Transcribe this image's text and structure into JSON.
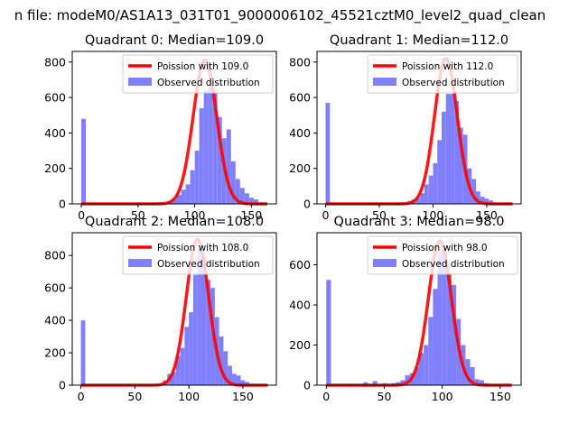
{
  "figure": {
    "suptitle": "n file: modeM0/AS1A13_031T01_9000006102_45521cztM0_level2_quad_clean"
  },
  "colors": {
    "histogram": "#8080ff",
    "fit": "#ff0000",
    "text": "#000000"
  },
  "chart_data": [
    {
      "type": "histogram",
      "title": "Quadrant 0: Median=109.0",
      "median": 109.0,
      "xlim": [
        -8,
        172
      ],
      "ylim": [
        0,
        860
      ],
      "xticks": [
        0,
        50,
        100,
        150
      ],
      "yticks": [
        0,
        200,
        400,
        600,
        800
      ],
      "legend": {
        "placement": "top-right",
        "entries": [
          "Poission with 109.0",
          "Observed distribution"
        ]
      },
      "fit_curve": {
        "name": "Poission with 109.0",
        "mean": 109.0,
        "peak": 810
      },
      "bins": [
        [
          0,
          480
        ],
        [
          4,
          3
        ],
        [
          24,
          3
        ],
        [
          40,
          3
        ],
        [
          60,
          3
        ],
        [
          72,
          5
        ],
        [
          76,
          15
        ],
        [
          80,
          25
        ],
        [
          84,
          50
        ],
        [
          88,
          80
        ],
        [
          92,
          110
        ],
        [
          96,
          190
        ],
        [
          100,
          300
        ],
        [
          104,
          540
        ],
        [
          108,
          640
        ],
        [
          112,
          660
        ],
        [
          116,
          640
        ],
        [
          120,
          490
        ],
        [
          124,
          370
        ],
        [
          128,
          420
        ],
        [
          132,
          240
        ],
        [
          136,
          140
        ],
        [
          140,
          90
        ],
        [
          144,
          60
        ],
        [
          148,
          35
        ],
        [
          152,
          25
        ],
        [
          156,
          8
        ],
        [
          160,
          3
        ]
      ],
      "bin_width": 4
    },
    {
      "type": "histogram",
      "title": "Quadrant 1: Median=112.0",
      "median": 112.0,
      "xlim": [
        -8,
        182
      ],
      "ylim": [
        0,
        860
      ],
      "xticks": [
        0,
        50,
        100,
        150
      ],
      "yticks": [
        0,
        200,
        400,
        600,
        800
      ],
      "legend": {
        "placement": "top-right",
        "entries": [
          "Poission with 112.0",
          "Observed distribution"
        ]
      },
      "fit_curve": {
        "name": "Poission with 112.0",
        "mean": 112.0,
        "peak": 820
      },
      "bins": [
        [
          0,
          570
        ],
        [
          4,
          3
        ],
        [
          20,
          3
        ],
        [
          44,
          5
        ],
        [
          60,
          3
        ],
        [
          72,
          5
        ],
        [
          76,
          15
        ],
        [
          80,
          25
        ],
        [
          84,
          35
        ],
        [
          88,
          60
        ],
        [
          92,
          110
        ],
        [
          96,
          160
        ],
        [
          100,
          230
        ],
        [
          104,
          360
        ],
        [
          108,
          520
        ],
        [
          112,
          620
        ],
        [
          116,
          620
        ],
        [
          120,
          580
        ],
        [
          124,
          430
        ],
        [
          128,
          390
        ],
        [
          132,
          200
        ],
        [
          136,
          140
        ],
        [
          140,
          70
        ],
        [
          144,
          40
        ],
        [
          148,
          30
        ],
        [
          152,
          20
        ],
        [
          164,
          3
        ]
      ],
      "bin_width": 4
    },
    {
      "type": "histogram",
      "title": "Quadrant 2: Median=108.0",
      "median": 108.0,
      "xlim": [
        -8,
        181
      ],
      "ylim": [
        0,
        940
      ],
      "xticks": [
        0,
        50,
        100,
        150
      ],
      "yticks": [
        0,
        200,
        400,
        600,
        800
      ],
      "legend": {
        "placement": "top-right",
        "entries": [
          "Poission with 108.0",
          "Observed distribution"
        ]
      },
      "fit_curve": {
        "name": "Poission with 108.0",
        "mean": 108.0,
        "peak": 900
      },
      "bins": [
        [
          0,
          400
        ],
        [
          4,
          3
        ],
        [
          76,
          30
        ],
        [
          80,
          70
        ],
        [
          84,
          80
        ],
        [
          88,
          180
        ],
        [
          92,
          230
        ],
        [
          96,
          360
        ],
        [
          100,
          450
        ],
        [
          104,
          680
        ],
        [
          108,
          840
        ],
        [
          112,
          800
        ],
        [
          116,
          650
        ],
        [
          120,
          600
        ],
        [
          124,
          420
        ],
        [
          128,
          300
        ],
        [
          132,
          210
        ],
        [
          136,
          120
        ],
        [
          140,
          70
        ],
        [
          144,
          60
        ],
        [
          148,
          30
        ],
        [
          152,
          20
        ],
        [
          156,
          8
        ],
        [
          160,
          3
        ]
      ],
      "bin_width": 4
    },
    {
      "type": "histogram",
      "title": "Quadrant 3: Median=98.0",
      "median": 98.0,
      "xlim": [
        -8,
        168
      ],
      "ylim": [
        0,
        760
      ],
      "xticks": [
        0,
        50,
        100,
        150
      ],
      "yticks": [
        0,
        200,
        400,
        600
      ],
      "legend": {
        "placement": "top-right",
        "entries": [
          "Poission with 98.0",
          "Observed distribution"
        ]
      },
      "fit_curve": {
        "name": "Poission with 98.0",
        "mean": 98.0,
        "peak": 720
      },
      "bins": [
        [
          0,
          525
        ],
        [
          4,
          3
        ],
        [
          20,
          5
        ],
        [
          32,
          15
        ],
        [
          40,
          20
        ],
        [
          48,
          10
        ],
        [
          56,
          10
        ],
        [
          60,
          15
        ],
        [
          64,
          25
        ],
        [
          68,
          50
        ],
        [
          72,
          60
        ],
        [
          76,
          90
        ],
        [
          80,
          160
        ],
        [
          84,
          200
        ],
        [
          88,
          340
        ],
        [
          92,
          480
        ],
        [
          96,
          660
        ],
        [
          100,
          680
        ],
        [
          104,
          560
        ],
        [
          108,
          500
        ],
        [
          112,
          330
        ],
        [
          116,
          200
        ],
        [
          120,
          130
        ],
        [
          124,
          90
        ],
        [
          128,
          30
        ],
        [
          132,
          25
        ],
        [
          136,
          10
        ]
      ],
      "bin_width": 4
    }
  ]
}
